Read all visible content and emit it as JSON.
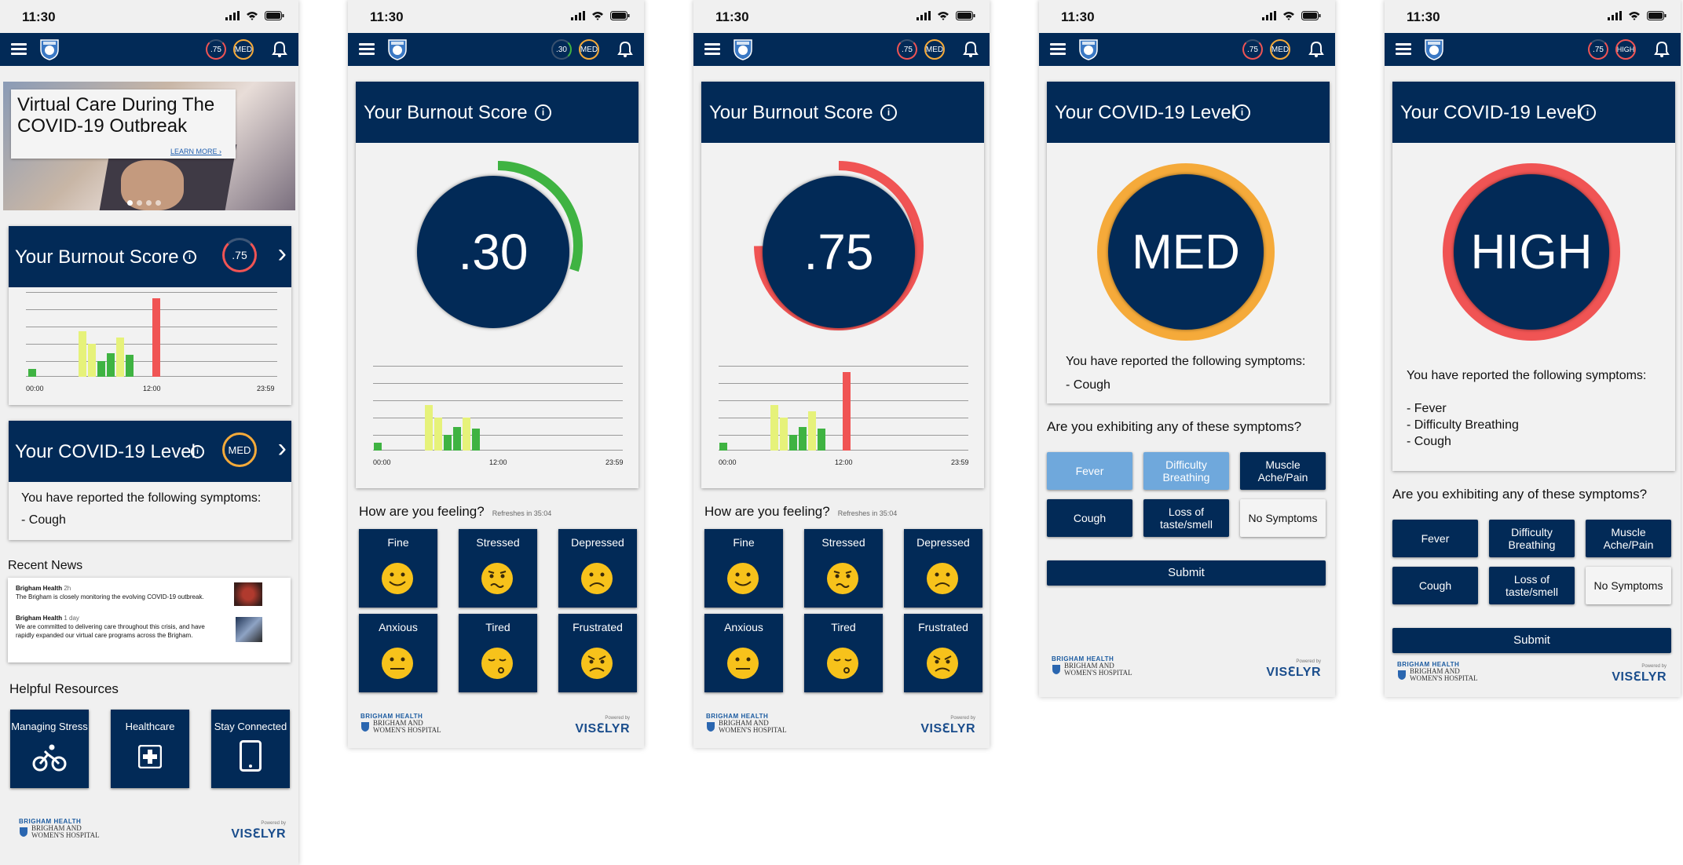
{
  "status": {
    "time": "11:30"
  },
  "colors": {
    "navy": "#022a57",
    "green": "#3fb342",
    "lime": "#e6f27a",
    "red": "#f05454",
    "orange": "#f5aa3a",
    "selected": "#6fa8dc"
  },
  "screen1": {
    "header_badges": [
      ".75",
      "MED"
    ],
    "banner": {
      "title": "Virtual Care During The COVID-19 Outbreak",
      "link": "LEARN MORE"
    },
    "burnout": {
      "title": "Your Burnout Score",
      "info": "i",
      "score": ".75",
      "chevron": "›",
      "chart_ticks": [
        "00:00",
        "12:00",
        "23:59"
      ]
    },
    "covid": {
      "title": "Your COVID-19 Level",
      "info": "i",
      "level": "MED",
      "chevron": "›",
      "reported": "You have reported the following symptoms:",
      "symptoms": [
        "- Cough"
      ]
    },
    "news": {
      "title": "Recent News",
      "items": [
        {
          "source": "Brigham Health",
          "age": "2h",
          "text": "The Brigham is closely monitoring the evolving COVID-19 outbreak."
        },
        {
          "source": "Brigham Health",
          "age": "1 day",
          "text": "We are committed to delivering care throughout this crisis, and have rapidly expanded our virtual care programs across the Brigham."
        }
      ]
    },
    "resources": {
      "title": "Helpful Resources",
      "items": [
        "Managing Stress",
        "Healthcare",
        "Stay Connected"
      ]
    },
    "footer": {
      "org": "BRIGHAM HEALTH",
      "hospital": "BRIGHAM AND WOMEN'S HOSPITAL",
      "powered": "Powered by",
      "brand": "VISℇLYR"
    }
  },
  "screen2": {
    "header_badges": [
      ".30",
      "MED"
    ],
    "title": "Your Burnout Score",
    "info": "i",
    "score": ".30",
    "chart_ticks": [
      "00:00",
      "12:00",
      "23:59"
    ],
    "feeling": {
      "title": "How are you feeling?",
      "refresh": "Refreshes in 35:04",
      "options": [
        "Fine",
        "Stressed",
        "Depressed",
        "Anxious",
        "Tired",
        "Frustrated"
      ]
    },
    "footer": {
      "org": "BRIGHAM HEALTH",
      "hospital": "BRIGHAM AND WOMEN'S HOSPITAL",
      "powered": "Powered by",
      "brand": "VISℇLYR"
    }
  },
  "screen3": {
    "header_badges": [
      ".75",
      "MED"
    ],
    "title": "Your Burnout Score",
    "info": "i",
    "score": ".75",
    "chart_ticks": [
      "00:00",
      "12:00",
      "23:59"
    ],
    "feeling": {
      "title": "How are you feeling?",
      "refresh": "Refreshes in 35:04",
      "options": [
        "Fine",
        "Stressed",
        "Depressed",
        "Anxious",
        "Tired",
        "Frustrated"
      ]
    },
    "footer": {
      "org": "BRIGHAM HEALTH",
      "hospital": "BRIGHAM AND WOMEN'S HOSPITAL",
      "powered": "Powered by",
      "brand": "VISℇLYR"
    }
  },
  "screen4": {
    "header_badges": [
      ".75",
      "MED"
    ],
    "title": "Your COVID-19 Level",
    "info": "i",
    "level": "MED",
    "reported": "You have reported the following symptoms:",
    "symptoms": [
      "- Cough"
    ],
    "question": "Are you exhibiting any of these symptoms?",
    "options": [
      "Fever",
      "Difficulty Breathing",
      "Muscle Ache/Pain",
      "Cough",
      "Loss of taste/smell",
      "No Symptoms"
    ],
    "submit": "Submit",
    "footer": {
      "org": "BRIGHAM HEALTH",
      "hospital": "BRIGHAM AND WOMEN'S HOSPITAL",
      "powered": "Powered by",
      "brand": "VISℇLYR"
    }
  },
  "screen5": {
    "header_badges": [
      ".75",
      "HIGH"
    ],
    "title": "Your COVID-19 Level",
    "info": "i",
    "level": "HIGH",
    "reported": "You have reported the following symptoms:",
    "symptoms": [
      "- Fever",
      "- Difficulty Breathing",
      "- Cough"
    ],
    "question": "Are you exhibiting any of these symptoms?",
    "options": [
      "Fever",
      "Difficulty Breathing",
      "Muscle Ache/Pain",
      "Cough",
      "Loss of taste/smell",
      "No Symptoms"
    ],
    "submit": "Submit",
    "footer": {
      "org": "BRIGHAM HEALTH",
      "hospital": "BRIGHAM AND WOMEN'S HOSPITAL",
      "powered": "Powered by",
      "brand": "VISℇLYR"
    }
  }
}
